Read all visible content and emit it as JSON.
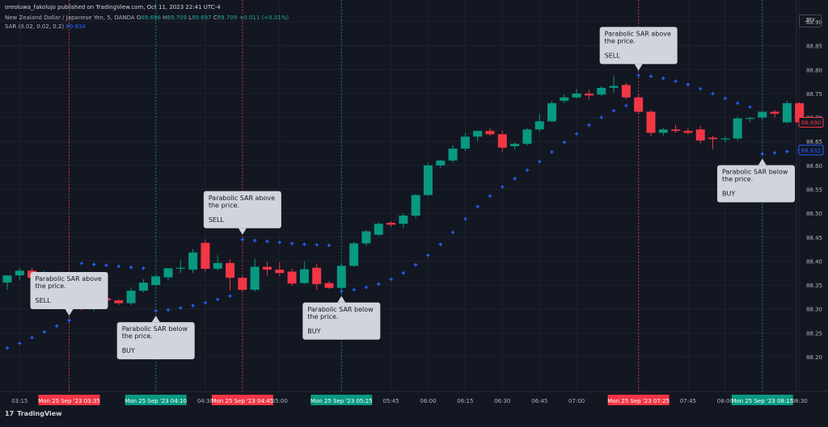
{
  "header": {
    "publisher": "oreoluwa_fakolujo published on TradingView.com, Oct 11, 2023 22:41 UTC-4",
    "symbol": "New Zealand Dollar / Japanese Yen, 5, OANDA",
    "o_label": "O",
    "o": "89.698",
    "h_label": "H",
    "h": "89.709",
    "l_label": "L",
    "l": "89.697",
    "c_label": "C",
    "c": "89.709",
    "change": "+0.011 (+0.01%)",
    "sar_label": "SAR (0.02, 0.02, 0.2)",
    "sar_value": "89.834"
  },
  "currency_button": "JPY",
  "footer": {
    "logo": "17",
    "brand": "TradingView"
  },
  "colors": {
    "background": "#131722",
    "up": "#089981",
    "down": "#f23645",
    "sar": "#2962ff",
    "grid": "#1e222d",
    "callout": "#d1d4dc",
    "callout_text": "#131722"
  },
  "chart_data": {
    "type": "candlestick",
    "ylim": [
      88.17,
      88.93
    ],
    "y_ticks": [
      "88.20",
      "88.25",
      "88.30",
      "88.35",
      "88.40",
      "88.45",
      "88.50",
      "88.55",
      "88.60",
      "88.65",
      "88.70",
      "88.75",
      "88.80",
      "88.85",
      "88.90"
    ],
    "x_ticks": [
      {
        "t": "03:15",
        "label": "03:15"
      },
      {
        "t": "03:35",
        "label": "Mon 25 Sep '23   03:35",
        "highlight": "sell"
      },
      {
        "t": "04:10",
        "label": "Mon 25 Sep '23   04:10",
        "highlight": "buy"
      },
      {
        "t": "04:30",
        "label": "04:30"
      },
      {
        "t": "04:45",
        "label": "Mon 25 Sep '23   04:45",
        "highlight": "sell"
      },
      {
        "t": "05:00",
        "label": "05:00"
      },
      {
        "t": "05:25",
        "label": "Mon 25 Sep '23   05:25",
        "highlight": "buy"
      },
      {
        "t": "05:45",
        "label": "05:45"
      },
      {
        "t": "06:00",
        "label": "06:00"
      },
      {
        "t": "06:15",
        "label": "06:15"
      },
      {
        "t": "06:30",
        "label": "06:30"
      },
      {
        "t": "06:45",
        "label": "06:45"
      },
      {
        "t": "07:00",
        "label": "07:00"
      },
      {
        "t": "07:25",
        "label": "Mon 25 Sep '23   07:25",
        "highlight": "sell"
      },
      {
        "t": "07:45",
        "label": "07:45"
      },
      {
        "t": "08:00",
        "label": "08:00"
      },
      {
        "t": "08:15",
        "label": "Mon 25 Sep '23   08:15",
        "highlight": "buy"
      },
      {
        "t": "08:30",
        "label": "08:30"
      }
    ],
    "candles": [
      {
        "t": "03:10",
        "o": 88.355,
        "h": 88.37,
        "l": 88.34,
        "c": 88.37
      },
      {
        "t": "03:15",
        "o": 88.37,
        "h": 88.385,
        "l": 88.36,
        "c": 88.38
      },
      {
        "t": "03:20",
        "o": 88.38,
        "h": 88.385,
        "l": 88.36,
        "c": 88.365
      },
      {
        "t": "03:25",
        "o": 88.365,
        "h": 88.38,
        "l": 88.36,
        "c": 88.375
      },
      {
        "t": "03:30",
        "o": 88.375,
        "h": 88.378,
        "l": 88.352,
        "c": 88.356
      },
      {
        "t": "03:35",
        "o": 88.356,
        "h": 88.372,
        "l": 88.345,
        "c": 88.366
      },
      {
        "t": "03:40",
        "o": 88.364,
        "h": 88.366,
        "l": 88.296,
        "c": 88.3
      },
      {
        "t": "03:45",
        "o": 88.3,
        "h": 88.33,
        "l": 88.295,
        "c": 88.322
      },
      {
        "t": "03:50",
        "o": 88.322,
        "h": 88.326,
        "l": 88.3,
        "c": 88.318
      },
      {
        "t": "03:55",
        "o": 88.318,
        "h": 88.32,
        "l": 88.308,
        "c": 88.312
      },
      {
        "t": "04:00",
        "o": 88.312,
        "h": 88.345,
        "l": 88.308,
        "c": 88.338
      },
      {
        "t": "04:05",
        "o": 88.338,
        "h": 88.362,
        "l": 88.334,
        "c": 88.355
      },
      {
        "t": "04:10",
        "o": 88.35,
        "h": 88.372,
        "l": 88.348,
        "c": 88.368
      },
      {
        "t": "04:15",
        "o": 88.366,
        "h": 88.385,
        "l": 88.36,
        "c": 88.385
      },
      {
        "t": "04:20",
        "o": 88.385,
        "h": 88.402,
        "l": 88.375,
        "c": 88.386
      },
      {
        "t": "04:25",
        "o": 88.382,
        "h": 88.425,
        "l": 88.375,
        "c": 88.418
      },
      {
        "t": "04:30",
        "o": 88.438,
        "h": 88.445,
        "l": 88.378,
        "c": 88.384
      },
      {
        "t": "04:35",
        "o": 88.384,
        "h": 88.412,
        "l": 88.38,
        "c": 88.396
      },
      {
        "t": "04:40",
        "o": 88.396,
        "h": 88.404,
        "l": 88.338,
        "c": 88.365
      },
      {
        "t": "04:45",
        "o": 88.365,
        "h": 88.368,
        "l": 88.337,
        "c": 88.34
      },
      {
        "t": "04:50",
        "o": 88.34,
        "h": 88.405,
        "l": 88.336,
        "c": 88.388
      },
      {
        "t": "04:55",
        "o": 88.388,
        "h": 88.398,
        "l": 88.37,
        "c": 88.382
      },
      {
        "t": "05:00",
        "o": 88.382,
        "h": 88.398,
        "l": 88.369,
        "c": 88.375
      },
      {
        "t": "05:05",
        "o": 88.378,
        "h": 88.384,
        "l": 88.348,
        "c": 88.353
      },
      {
        "t": "05:10",
        "o": 88.354,
        "h": 88.4,
        "l": 88.352,
        "c": 88.383
      },
      {
        "t": "05:15",
        "o": 88.386,
        "h": 88.394,
        "l": 88.34,
        "c": 88.352
      },
      {
        "t": "05:20",
        "o": 88.354,
        "h": 88.358,
        "l": 88.342,
        "c": 88.344
      },
      {
        "t": "05:25",
        "o": 88.344,
        "h": 88.395,
        "l": 88.338,
        "c": 88.39
      },
      {
        "t": "05:30",
        "o": 88.39,
        "h": 88.44,
        "l": 88.388,
        "c": 88.437
      },
      {
        "t": "05:35",
        "o": 88.437,
        "h": 88.465,
        "l": 88.432,
        "c": 88.462
      },
      {
        "t": "05:40",
        "o": 88.455,
        "h": 88.482,
        "l": 88.452,
        "c": 88.478
      },
      {
        "t": "05:45",
        "o": 88.48,
        "h": 88.483,
        "l": 88.472,
        "c": 88.476
      },
      {
        "t": "05:50",
        "o": 88.478,
        "h": 88.5,
        "l": 88.47,
        "c": 88.495
      },
      {
        "t": "05:55",
        "o": 88.495,
        "h": 88.54,
        "l": 88.49,
        "c": 88.538
      },
      {
        "t": "06:00",
        "o": 88.538,
        "h": 88.605,
        "l": 88.535,
        "c": 88.6
      },
      {
        "t": "06:05",
        "o": 88.6,
        "h": 88.612,
        "l": 88.595,
        "c": 88.61
      },
      {
        "t": "06:10",
        "o": 88.61,
        "h": 88.642,
        "l": 88.605,
        "c": 88.635
      },
      {
        "t": "06:15",
        "o": 88.635,
        "h": 88.668,
        "l": 88.63,
        "c": 88.66
      },
      {
        "t": "06:20",
        "o": 88.66,
        "h": 88.672,
        "l": 88.65,
        "c": 88.672
      },
      {
        "t": "06:25",
        "o": 88.672,
        "h": 88.678,
        "l": 88.662,
        "c": 88.665
      },
      {
        "t": "06:30",
        "o": 88.665,
        "h": 88.672,
        "l": 88.628,
        "c": 88.637
      },
      {
        "t": "06:35",
        "o": 88.64,
        "h": 88.648,
        "l": 88.632,
        "c": 88.645
      },
      {
        "t": "06:40",
        "o": 88.645,
        "h": 88.678,
        "l": 88.642,
        "c": 88.675
      },
      {
        "t": "06:45",
        "o": 88.675,
        "h": 88.708,
        "l": 88.67,
        "c": 88.692
      },
      {
        "t": "06:50",
        "o": 88.692,
        "h": 88.735,
        "l": 88.69,
        "c": 88.73
      },
      {
        "t": "06:55",
        "o": 88.735,
        "h": 88.748,
        "l": 88.73,
        "c": 88.742
      },
      {
        "t": "07:00",
        "o": 88.742,
        "h": 88.76,
        "l": 88.74,
        "c": 88.75
      },
      {
        "t": "07:05",
        "o": 88.75,
        "h": 88.758,
        "l": 88.738,
        "c": 88.746
      },
      {
        "t": "07:10",
        "o": 88.748,
        "h": 88.766,
        "l": 88.744,
        "c": 88.762
      },
      {
        "t": "07:15",
        "o": 88.762,
        "h": 88.788,
        "l": 88.752,
        "c": 88.766
      },
      {
        "t": "07:20",
        "o": 88.768,
        "h": 88.772,
        "l": 88.738,
        "c": 88.742
      },
      {
        "t": "07:25",
        "o": 88.742,
        "h": 88.748,
        "l": 88.708,
        "c": 88.712
      },
      {
        "t": "07:30",
        "o": 88.712,
        "h": 88.716,
        "l": 88.662,
        "c": 88.668
      },
      {
        "t": "07:35",
        "o": 88.668,
        "h": 88.678,
        "l": 88.662,
        "c": 88.675
      },
      {
        "t": "07:40",
        "o": 88.675,
        "h": 88.685,
        "l": 88.668,
        "c": 88.672
      },
      {
        "t": "07:45",
        "o": 88.672,
        "h": 88.678,
        "l": 88.665,
        "c": 88.668
      },
      {
        "t": "07:50",
        "o": 88.675,
        "h": 88.682,
        "l": 88.646,
        "c": 88.652
      },
      {
        "t": "07:55",
        "o": 88.658,
        "h": 88.662,
        "l": 88.634,
        "c": 88.655
      },
      {
        "t": "08:00",
        "o": 88.655,
        "h": 88.66,
        "l": 88.648,
        "c": 88.656
      },
      {
        "t": "08:05",
        "o": 88.656,
        "h": 88.702,
        "l": 88.652,
        "c": 88.698
      },
      {
        "t": "08:10",
        "o": 88.698,
        "h": 88.702,
        "l": 88.69,
        "c": 88.699
      },
      {
        "t": "08:15",
        "o": 88.7,
        "h": 88.712,
        "l": 88.694,
        "c": 88.712
      },
      {
        "t": "08:20",
        "o": 88.712,
        "h": 88.716,
        "l": 88.7,
        "c": 88.708
      },
      {
        "t": "08:25",
        "o": 88.69,
        "h": 88.735,
        "l": 88.688,
        "c": 88.73
      },
      {
        "t": "08:30",
        "o": 88.73,
        "h": 88.732,
        "l": 88.688,
        "c": 88.69
      }
    ],
    "sar": [
      {
        "t": "03:10",
        "v": 88.218
      },
      {
        "t": "03:15",
        "v": 88.228
      },
      {
        "t": "03:20",
        "v": 88.24
      },
      {
        "t": "03:25",
        "v": 88.252
      },
      {
        "t": "03:30",
        "v": 88.264
      },
      {
        "t": "03:35",
        "v": 88.276
      },
      {
        "t": "03:40",
        "v": 88.395
      },
      {
        "t": "03:45",
        "v": 88.393
      },
      {
        "t": "03:50",
        "v": 88.391
      },
      {
        "t": "03:55",
        "v": 88.389
      },
      {
        "t": "04:00",
        "v": 88.387
      },
      {
        "t": "04:05",
        "v": 88.385
      },
      {
        "t": "04:10",
        "v": 88.296
      },
      {
        "t": "04:15",
        "v": 88.298
      },
      {
        "t": "04:20",
        "v": 88.302
      },
      {
        "t": "04:25",
        "v": 88.307
      },
      {
        "t": "04:30",
        "v": 88.313
      },
      {
        "t": "04:35",
        "v": 88.32
      },
      {
        "t": "04:40",
        "v": 88.327
      },
      {
        "t": "04:45",
        "v": 88.445
      },
      {
        "t": "04:50",
        "v": 88.443
      },
      {
        "t": "04:55",
        "v": 88.441
      },
      {
        "t": "05:00",
        "v": 88.439
      },
      {
        "t": "05:05",
        "v": 88.437
      },
      {
        "t": "05:10",
        "v": 88.435
      },
      {
        "t": "05:15",
        "v": 88.434
      },
      {
        "t": "05:20",
        "v": 88.433
      },
      {
        "t": "05:25",
        "v": 88.337
      },
      {
        "t": "05:30",
        "v": 88.34
      },
      {
        "t": "05:35",
        "v": 88.345
      },
      {
        "t": "05:40",
        "v": 88.352
      },
      {
        "t": "05:45",
        "v": 88.362
      },
      {
        "t": "05:50",
        "v": 88.375
      },
      {
        "t": "05:55",
        "v": 88.392
      },
      {
        "t": "06:00",
        "v": 88.412
      },
      {
        "t": "06:05",
        "v": 88.435
      },
      {
        "t": "06:10",
        "v": 88.46
      },
      {
        "t": "06:15",
        "v": 88.488
      },
      {
        "t": "06:20",
        "v": 88.514
      },
      {
        "t": "06:25",
        "v": 88.536
      },
      {
        "t": "06:30",
        "v": 88.555
      },
      {
        "t": "06:35",
        "v": 88.572
      },
      {
        "t": "06:40",
        "v": 88.59
      },
      {
        "t": "06:45",
        "v": 88.608
      },
      {
        "t": "06:50",
        "v": 88.628
      },
      {
        "t": "06:55",
        "v": 88.648
      },
      {
        "t": "07:00",
        "v": 88.666
      },
      {
        "t": "07:05",
        "v": 88.684
      },
      {
        "t": "07:10",
        "v": 88.7
      },
      {
        "t": "07:15",
        "v": 88.714
      },
      {
        "t": "07:20",
        "v": 88.725
      },
      {
        "t": "07:25",
        "v": 88.788
      },
      {
        "t": "07:30",
        "v": 88.786
      },
      {
        "t": "07:35",
        "v": 88.782
      },
      {
        "t": "07:40",
        "v": 88.776
      },
      {
        "t": "07:45",
        "v": 88.769
      },
      {
        "t": "07:50",
        "v": 88.76
      },
      {
        "t": "07:55",
        "v": 88.75
      },
      {
        "t": "08:00",
        "v": 88.74
      },
      {
        "t": "08:05",
        "v": 88.73
      },
      {
        "t": "08:10",
        "v": 88.722
      },
      {
        "t": "08:15",
        "v": 88.624
      },
      {
        "t": "08:20",
        "v": 88.626
      },
      {
        "t": "08:25",
        "v": 88.629
      },
      {
        "t": "08:30",
        "v": 88.632
      }
    ],
    "signal_lines": [
      {
        "t": "03:35",
        "type": "sell"
      },
      {
        "t": "04:10",
        "type": "buy"
      },
      {
        "t": "04:45",
        "type": "sell"
      },
      {
        "t": "05:25",
        "type": "buy"
      },
      {
        "t": "07:25",
        "type": "sell"
      },
      {
        "t": "08:15",
        "type": "buy"
      }
    ],
    "price_labels": [
      {
        "value": 88.69,
        "text": "88.690",
        "color": "#f23645"
      },
      {
        "value": 88.632,
        "text": "88.632",
        "color": "#2962ff"
      }
    ],
    "annotations": [
      {
        "t": "03:35",
        "line1": "Parabolic SAR above",
        "line2": "the price.",
        "signal": "SELL",
        "pos": "above"
      },
      {
        "t": "04:10",
        "line1": "Parabolic SAR below",
        "line2": "the price.",
        "signal": "BUY",
        "pos": "below"
      },
      {
        "t": "04:45",
        "line1": "Parabolic SAR above",
        "line2": "the price.",
        "signal": "SELL",
        "pos": "above"
      },
      {
        "t": "05:25",
        "line1": "Parabolic SAR below",
        "line2": "the price.",
        "signal": "BUY",
        "pos": "below"
      },
      {
        "t": "07:25",
        "line1": "Parabolic SAR above",
        "line2": "the price.",
        "signal": "SELL",
        "pos": "above"
      },
      {
        "t": "08:15",
        "line1": "Parabolic SAR below",
        "line2": "the price.",
        "signal": "BUY",
        "pos": "below"
      }
    ]
  }
}
